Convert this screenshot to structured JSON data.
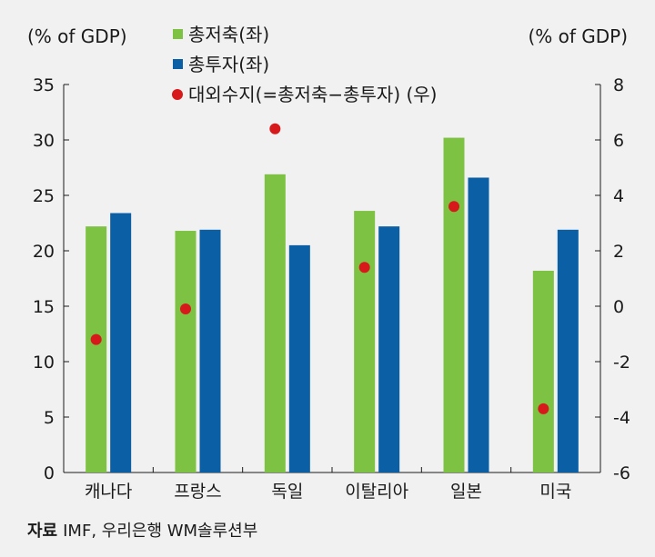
{
  "chart_data": {
    "type": "bar",
    "categories": [
      "캐나다",
      "프랑스",
      "독일",
      "이탈리아",
      "일본",
      "미국"
    ],
    "series": [
      {
        "name": "총저축(좌)",
        "type": "bar",
        "axis": "left",
        "color": "#7dc242",
        "marker": "square",
        "values": [
          22.2,
          21.8,
          26.9,
          23.6,
          30.2,
          18.2
        ]
      },
      {
        "name": "총투자(좌)",
        "type": "bar",
        "axis": "left",
        "color": "#0b5fa5",
        "marker": "square",
        "values": [
          23.4,
          21.9,
          20.5,
          22.2,
          26.6,
          21.9
        ]
      },
      {
        "name": "대외수지(=총저축−총투자) (우)",
        "type": "scatter",
        "axis": "right",
        "color": "#d7191c",
        "marker": "circle",
        "values": [
          -1.2,
          -0.1,
          6.4,
          1.4,
          3.6,
          -3.7
        ]
      }
    ],
    "ylabel_left": "(% of GDP)",
    "ylabel_right": "(% of GDP)",
    "ylim_left": [
      0,
      35
    ],
    "yticks_left": [
      0,
      5,
      10,
      15,
      20,
      25,
      30,
      35
    ],
    "ylim_right": [
      -6,
      8
    ],
    "yticks_right": [
      -6,
      -4,
      -2,
      0,
      2,
      4,
      6,
      8
    ],
    "legend": "top-left",
    "grid": false
  },
  "source": {
    "label": "자료",
    "text": "IMF, 우리은행 WM솔루션부"
  }
}
